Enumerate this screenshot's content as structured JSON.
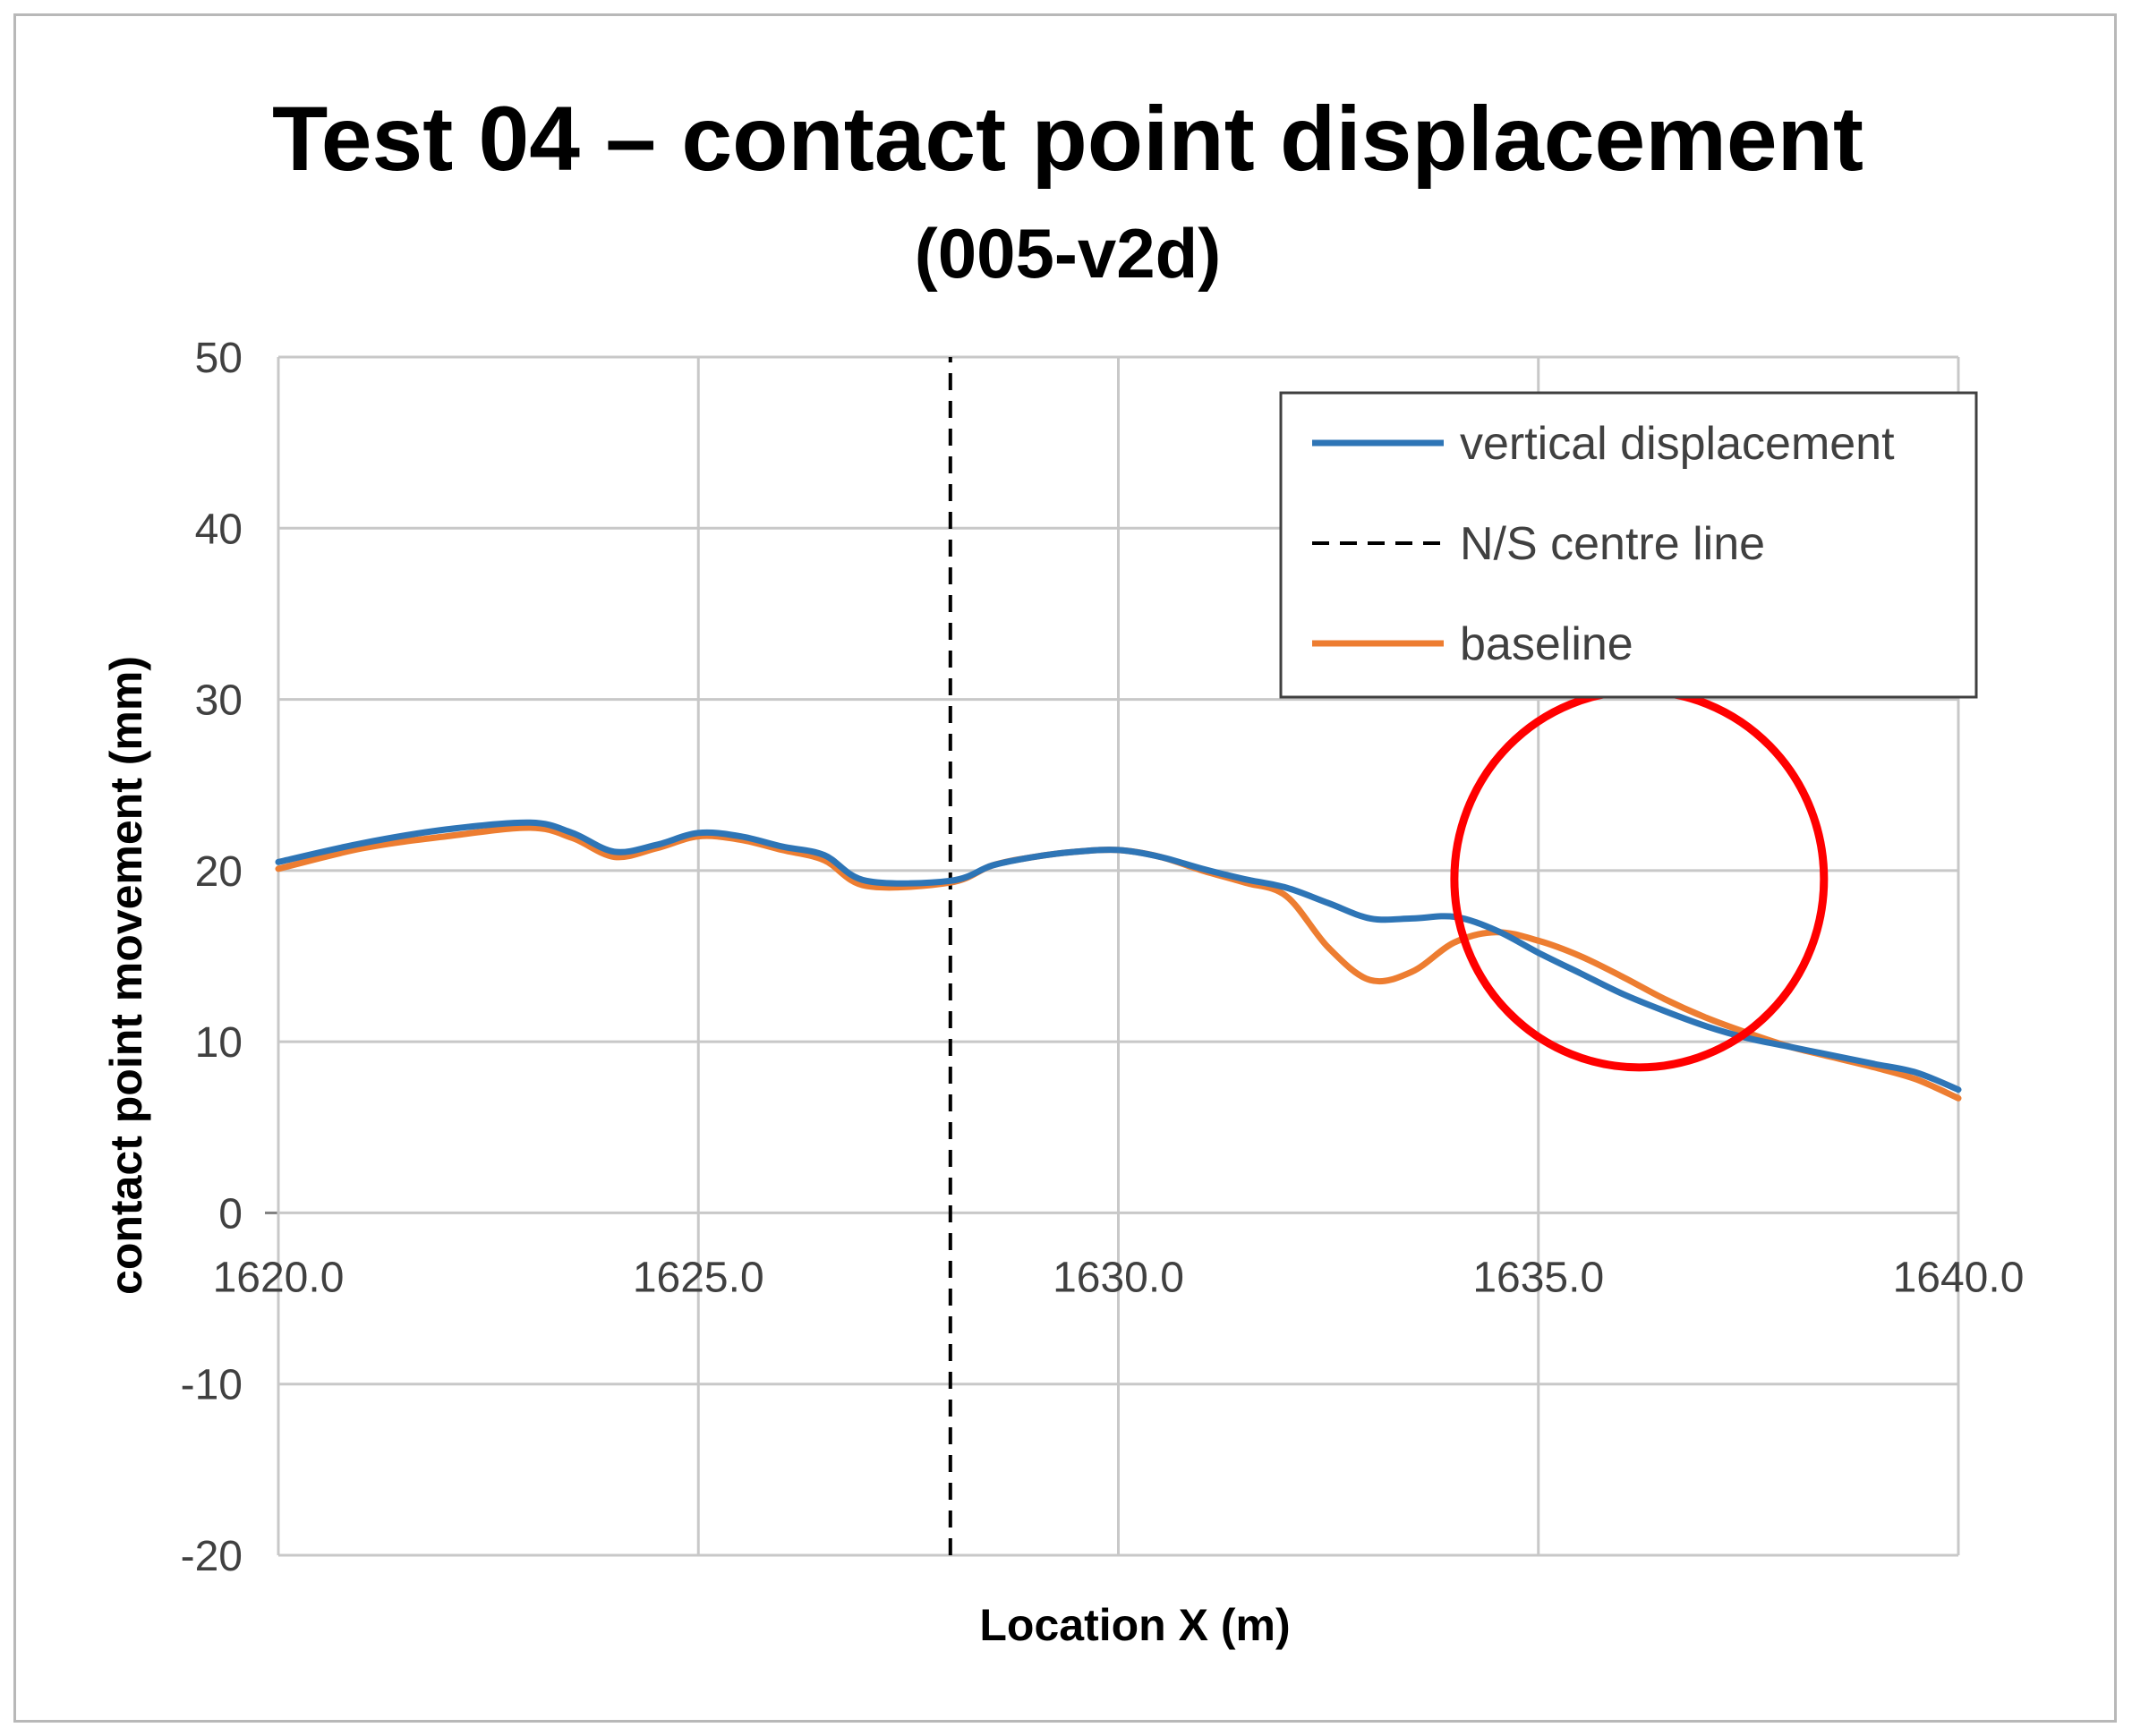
{
  "chart_data": {
    "type": "line",
    "title": "Test 04 – contact point displacement",
    "subtitle": "(005-v2d)",
    "xlabel": "Location X (m)",
    "ylabel": "contact point movement (mm)",
    "xlim": [
      1620,
      1640
    ],
    "ylim": [
      -20,
      50
    ],
    "x_ticks": [
      "1620.0",
      "1625.0",
      "1630.0",
      "1635.0",
      "1640.0"
    ],
    "y_ticks": [
      "-20",
      "-10",
      "0",
      "10",
      "20",
      "30",
      "40",
      "50"
    ],
    "grid": true,
    "legend_position": "top-right",
    "series": [
      {
        "name": "vertical displacement",
        "color": "#2e75b6",
        "style": "solid",
        "x": [
          1620,
          1621,
          1622,
          1623,
          1623.5,
          1624,
          1624.5,
          1625,
          1625.5,
          1626,
          1626.5,
          1627,
          1628,
          1628.5,
          1629,
          1629.5,
          1630,
          1630.5,
          1631,
          1631.5,
          1632,
          1632.5,
          1633,
          1633.5,
          1634,
          1634.5,
          1635,
          1635.5,
          1636,
          1636.5,
          1637,
          1637.5,
          1638,
          1638.5,
          1639,
          1639.5,
          1640
        ],
        "y": [
          20.5,
          21.6,
          22.4,
          22.8,
          22.2,
          21.1,
          21.5,
          22.2,
          22.0,
          21.4,
          20.9,
          19.4,
          19.4,
          20.3,
          20.8,
          21.1,
          21.2,
          20.8,
          20.1,
          19.5,
          19.0,
          18.1,
          17.2,
          17.2,
          17.3,
          16.5,
          15.2,
          14.0,
          12.8,
          11.8,
          10.9,
          10.2,
          9.7,
          9.2,
          8.7,
          8.2,
          7.2
        ]
      },
      {
        "name": "N/S centre line",
        "color": "#000000",
        "style": "dashed",
        "x": [
          1628,
          1628
        ],
        "y": [
          -20,
          50
        ]
      },
      {
        "name": "baseline",
        "color": "#ed7d31",
        "style": "solid",
        "x": [
          1620,
          1621,
          1622,
          1623,
          1623.5,
          1624,
          1624.5,
          1625,
          1625.5,
          1626,
          1626.5,
          1627,
          1628,
          1628.5,
          1629,
          1629.5,
          1630,
          1630.5,
          1631,
          1631.5,
          1632,
          1632.5,
          1633,
          1633.5,
          1634,
          1634.5,
          1635,
          1635.5,
          1636,
          1636.5,
          1637,
          1637.5,
          1638,
          1638.5,
          1639,
          1639.5,
          1640
        ],
        "y": [
          20.1,
          21.3,
          22.0,
          22.5,
          21.9,
          20.8,
          21.3,
          22.0,
          21.8,
          21.2,
          20.6,
          19.1,
          19.3,
          20.3,
          20.8,
          21.1,
          21.2,
          20.8,
          20.0,
          19.3,
          18.5,
          15.5,
          13.6,
          14.1,
          15.8,
          16.4,
          15.9,
          15.0,
          13.8,
          12.5,
          11.4,
          10.5,
          9.7,
          9.1,
          8.5,
          7.8,
          6.7
        ]
      }
    ],
    "annotations": [
      {
        "type": "circle",
        "color": "#ff0000",
        "center_x": 1636.2,
        "center_y": 19.5,
        "radius_x": 2.2,
        "radius_y": 11.0
      }
    ]
  }
}
